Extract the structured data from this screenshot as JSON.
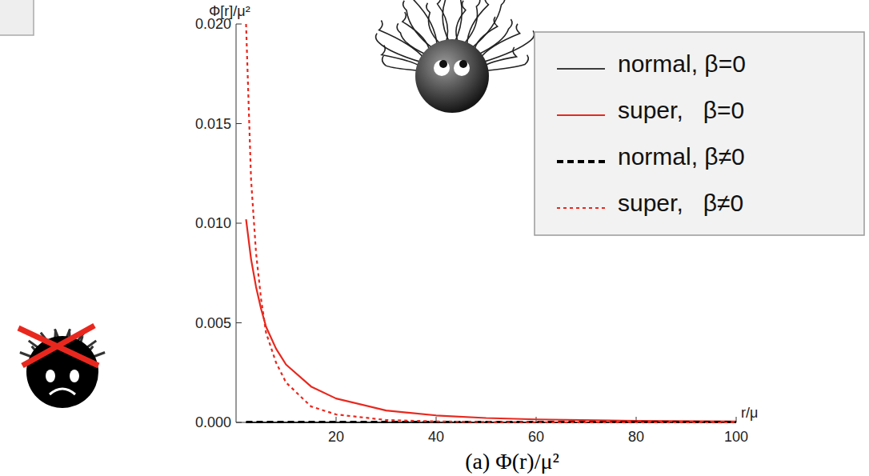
{
  "chart_data": {
    "type": "line",
    "y_label": "Φ[r]/μ²",
    "x_label": "r/μ",
    "caption": "(a) Φ(r)/μ²",
    "x": [
      2,
      3,
      4,
      5,
      6,
      8,
      10,
      15,
      20,
      30,
      40,
      50,
      60,
      80,
      100
    ],
    "series": [
      {
        "name": "normal, β=0",
        "color": "#000000",
        "line_style": "solid",
        "values": [
          0,
          0,
          0,
          0,
          0,
          0,
          0,
          0,
          0,
          0,
          0,
          0,
          0,
          0,
          0
        ]
      },
      {
        "name": "super,   β=0",
        "color": "#e8281e",
        "line_style": "solid",
        "values": [
          0.0102,
          0.0082,
          0.0068,
          0.0057,
          0.0048,
          0.0037,
          0.0029,
          0.0018,
          0.0012,
          0.0006,
          0.00035,
          0.00022,
          0.00015,
          8e-05,
          5e-05
        ]
      },
      {
        "name": "normal, β≠0",
        "color": "#000000",
        "line_style": "dashed",
        "values": [
          0,
          0,
          0,
          0,
          0,
          0,
          0,
          0,
          0,
          0,
          0,
          0,
          0,
          0,
          0
        ]
      },
      {
        "name": "super,   β≠0",
        "color": "#e8281e",
        "line_style": "dotted",
        "values": [
          0.02,
          0.0122,
          0.0085,
          0.0062,
          0.0045,
          0.003,
          0.002,
          0.0008,
          0.0004,
          0.00012,
          5e-05,
          2e-05,
          1e-05,
          0,
          0
        ]
      }
    ],
    "xlim": [
      0,
      100
    ],
    "xticks": [
      20,
      40,
      60,
      80,
      100
    ],
    "ylim": [
      0,
      0.02
    ],
    "yticks": [
      {
        "value": 0,
        "label": "0.000"
      },
      {
        "value": 0.005,
        "label": "0.005"
      },
      {
        "value": 0.01,
        "label": "0.010"
      },
      {
        "value": 0.015,
        "label": "0.015"
      },
      {
        "value": 0.02,
        "label": "0.020"
      }
    ],
    "grid": false,
    "legend": "upper right"
  }
}
